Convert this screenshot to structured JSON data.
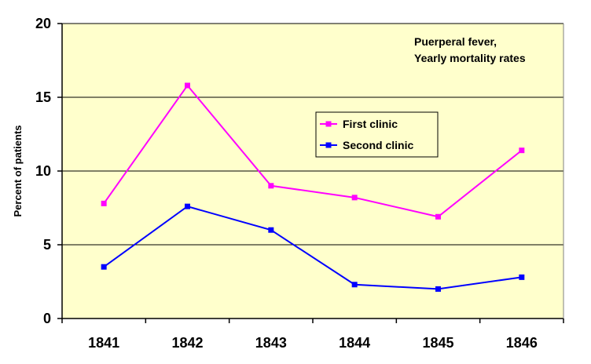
{
  "chart_data": {
    "type": "line",
    "categories": [
      "1841",
      "1842",
      "1843",
      "1844",
      "1845",
      "1846"
    ],
    "series": [
      {
        "name": "First clinic",
        "color": "#ff00ff",
        "values": [
          7.8,
          15.8,
          9.0,
          8.2,
          6.9,
          11.4
        ]
      },
      {
        "name": "Second clinic",
        "color": "#0000ff",
        "values": [
          3.5,
          7.6,
          6.0,
          2.3,
          2.0,
          2.8
        ]
      }
    ],
    "title_lines": [
      "Puerperal fever,",
      "Yearly mortality rates"
    ],
    "xlabel": "",
    "ylabel": "Percent of patients",
    "ylim": [
      0,
      20
    ],
    "yticks": [
      0,
      5,
      10,
      15,
      20
    ],
    "ytick_labels": [
      "0",
      "5",
      "10",
      "15",
      "20"
    ],
    "grid": true,
    "legend_position": "center-right",
    "plot_background": "#ffffcc",
    "grid_color": "#000000"
  }
}
